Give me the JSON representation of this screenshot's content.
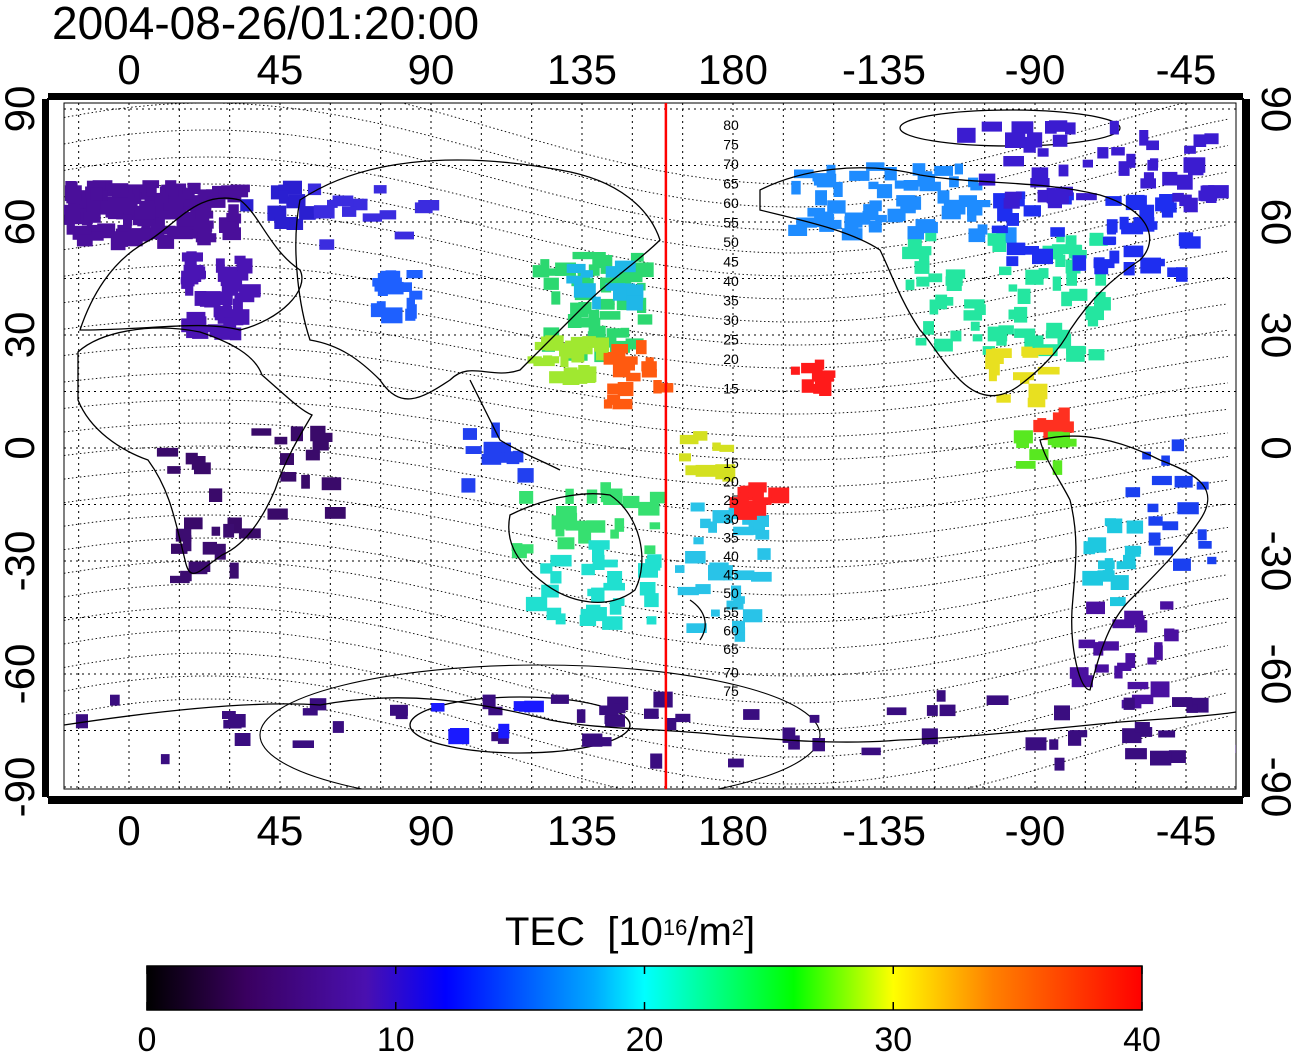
{
  "title": "2004-08-26/01:20:00",
  "map": {
    "lon_ticks": [
      "0",
      "45",
      "90",
      "135",
      "180",
      "-135",
      "-90",
      "-45"
    ],
    "lat_ticks": [
      "90",
      "60",
      "30",
      "0",
      "-30",
      "-60",
      "-90"
    ],
    "contour_labels_north": [
      "80",
      "75",
      "70",
      "65",
      "60",
      "55",
      "50",
      "45",
      "40",
      "35",
      "30",
      "25",
      "20",
      "15"
    ],
    "contour_labels_south": [
      "15",
      "20",
      "25",
      "30",
      "35",
      "40",
      "45",
      "50",
      "55",
      "60",
      "65",
      "70",
      "75"
    ],
    "meridian_line_lon": 160,
    "meridian_color": "#ff0000"
  },
  "colorbar": {
    "label": "TEC",
    "unit_base": "[10",
    "unit_exp": "16",
    "unit_mid": "/m",
    "unit_exp2": "2",
    "unit_close": "]",
    "ticks": [
      "0",
      "10",
      "20",
      "30",
      "40"
    ],
    "min": 0,
    "max": 40
  }
}
